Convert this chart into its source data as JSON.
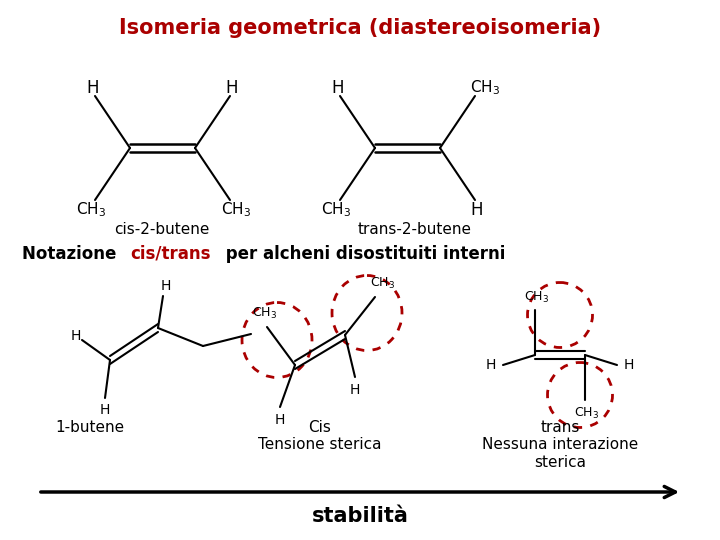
{
  "title": "Isomeria geometrica (diastereoisomeria)",
  "title_color": "#aa0000",
  "title_fontsize": 15,
  "bg_color": "#ffffff",
  "stabilita": "stabilità",
  "cis_label": "cis-2-butene",
  "trans_label": "trans-2-butene",
  "label1": "1-butene",
  "label2": "Cis\nTensione sterica",
  "label3": "trans\nNessuna interazione\nsterica",
  "circle_color": "#aa0000",
  "notazione_black1": "Notazione ",
  "notazione_red": "cis/trans",
  "notazione_black2": " per alcheni disostituiti interni"
}
